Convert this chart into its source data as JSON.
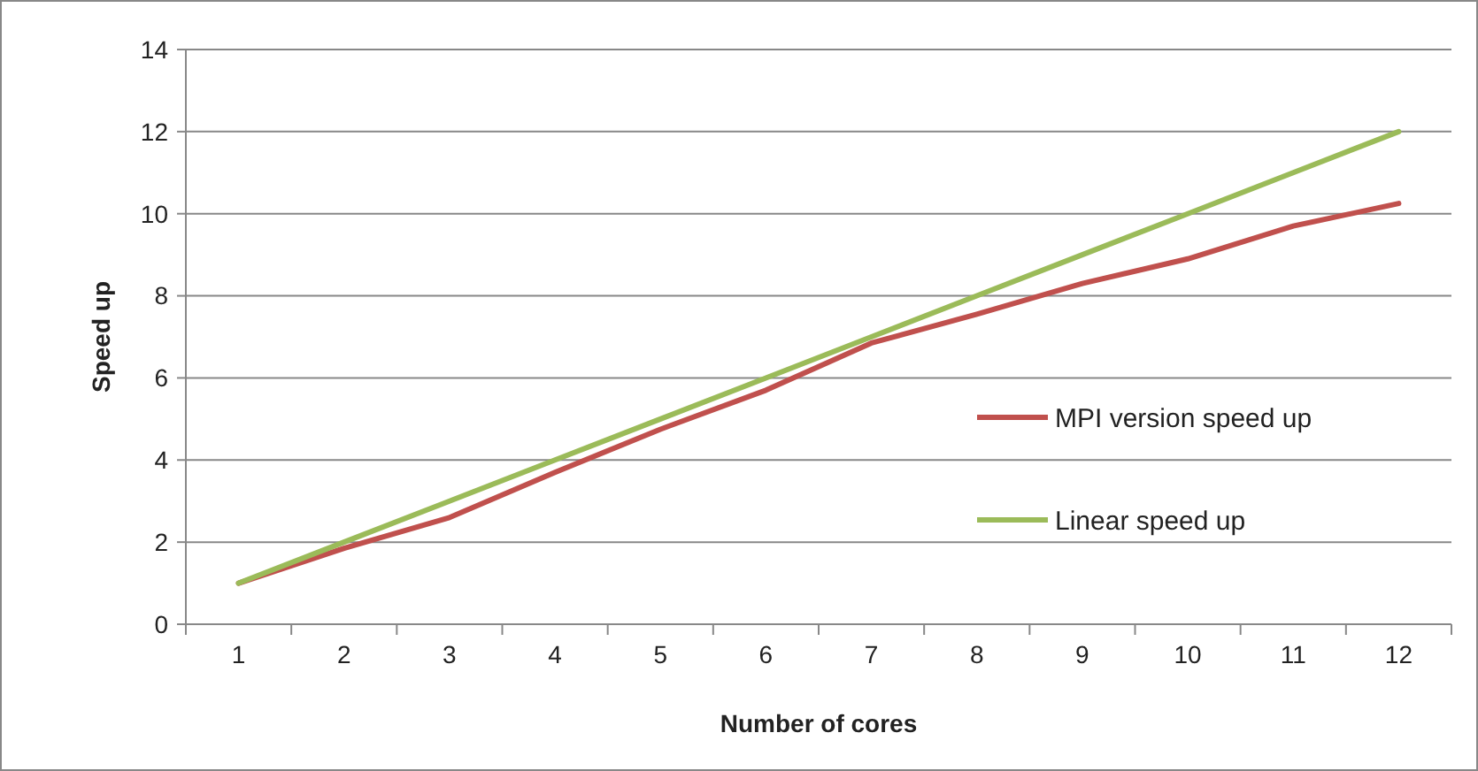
{
  "chart_data": {
    "type": "line",
    "xlabel": "Number of cores",
    "ylabel": "Speed up",
    "categories": [
      "1",
      "2",
      "3",
      "4",
      "5",
      "6",
      "7",
      "8",
      "9",
      "10",
      "11",
      "12"
    ],
    "series": [
      {
        "name": "MPI version speed up",
        "color": "#c0504d",
        "values": [
          1,
          1.85,
          2.6,
          3.7,
          4.75,
          5.7,
          6.85,
          7.55,
          8.3,
          8.9,
          9.7,
          10.25
        ]
      },
      {
        "name": "Linear speed up",
        "color": "#9bbb59",
        "values": [
          1,
          2,
          3,
          4,
          5,
          6,
          7,
          8,
          9,
          10,
          11,
          12
        ]
      }
    ],
    "ylim": [
      0,
      14
    ],
    "yticks": [
      0,
      2,
      4,
      6,
      8,
      10,
      12,
      14
    ],
    "grid": "y",
    "legend": "right",
    "marker": "none",
    "line_style": "solid"
  }
}
